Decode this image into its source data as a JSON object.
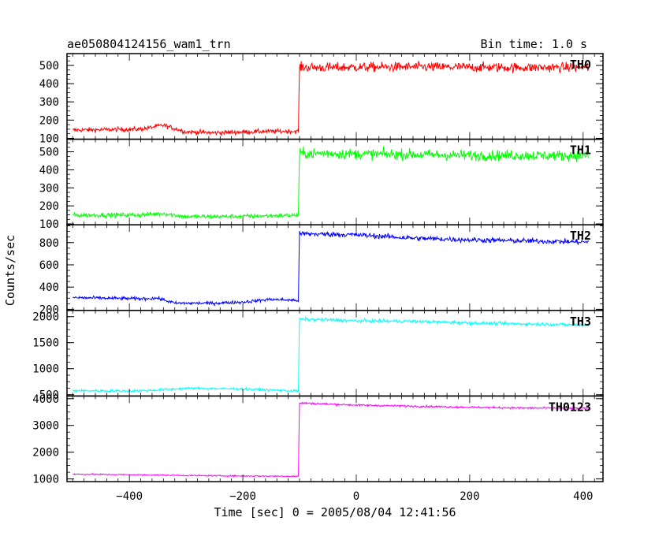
{
  "header": {
    "title": "ae050804124156_wam1_trn",
    "bin_time": "Bin time: 1.0 s"
  },
  "chart_data": {
    "type": "line",
    "xlabel": "Time [sec] 0 = 2005/08/04 12:41:56",
    "ylabel": "Counts/sec",
    "xlim": [
      -510,
      435
    ],
    "x_range": [
      -500,
      410
    ],
    "x_ticks": [
      -400,
      -200,
      0,
      200,
      400
    ],
    "x_tick_labels": [
      "−400",
      "−200",
      "0",
      "200",
      "400"
    ],
    "step_time": -102,
    "grid": false,
    "panels": [
      {
        "name": "TH0",
        "color": "#ff0000",
        "ylim": [
          95,
          565
        ],
        "yticks": [
          100,
          200,
          300,
          400,
          500
        ],
        "ytick_labels": [
          "100",
          "200",
          "300",
          "400",
          "500"
        ],
        "segments": [
          {
            "x": [
              -500,
              -380,
              -340,
              -300,
              -250,
              -200,
              -150,
              -102
            ],
            "y": [
              145,
              150,
              172,
              135,
              130,
              135,
              138,
              138
            ]
          },
          {
            "x": [
              -100,
              -50,
              0,
              100,
              200,
              300,
              410
            ],
            "y": [
              490,
              488,
              490,
              492,
              490,
              488,
              490
            ]
          }
        ],
        "noise": [
          12,
          25
        ]
      },
      {
        "name": "TH1",
        "color": "#00ff00",
        "ylim": [
          95,
          570
        ],
        "yticks": [
          100,
          200,
          300,
          400,
          500
        ],
        "ytick_labels": [
          "100",
          "200",
          "300",
          "400",
          "500"
        ],
        "segments": [
          {
            "x": [
              -500,
              -380,
              -340,
              -300,
              -200,
              -102
            ],
            "y": [
              148,
              150,
              158,
              140,
              142,
              148
            ]
          },
          {
            "x": [
              -100,
              -50,
              0,
              100,
              200,
              300,
              410
            ],
            "y": [
              490,
              492,
              488,
              485,
              480,
              480,
              478
            ]
          }
        ],
        "noise": [
          12,
          28
        ]
      },
      {
        "name": "TH2",
        "color": "#0000ff",
        "ylim": [
          190,
          960
        ],
        "yticks": [
          200,
          400,
          600,
          800
        ],
        "ytick_labels": [
          "200",
          "400",
          "600",
          "800"
        ],
        "segments": [
          {
            "x": [
              -500,
              -380,
              -350,
              -320,
              -250,
              -200,
              -150,
              -102
            ],
            "y": [
              305,
              295,
              300,
              255,
              255,
              265,
              290,
              280
            ]
          },
          {
            "x": [
              -100,
              -50,
              0,
              100,
              200,
              300,
              410
            ],
            "y": [
              880,
              875,
              870,
              840,
              825,
              815,
              805
            ]
          }
        ],
        "noise": [
          14,
          22
        ]
      },
      {
        "name": "TH3",
        "color": "#00ffff",
        "ylim": [
          475,
          2120
        ],
        "yticks": [
          500,
          1000,
          1500,
          2000
        ],
        "ytick_labels": [
          "500",
          "1000",
          "1500",
          "2000"
        ],
        "segments": [
          {
            "x": [
              -500,
              -400,
              -350,
              -300,
              -200,
              -150,
              -102
            ],
            "y": [
              580,
              570,
              590,
              625,
              610,
              590,
              570
            ]
          },
          {
            "x": [
              -100,
              -50,
              0,
              100,
              200,
              300,
              410
            ],
            "y": [
              1950,
              1940,
              1920,
              1910,
              1880,
              1860,
              1840
            ]
          }
        ],
        "noise": [
          22,
          30
        ]
      },
      {
        "name": "TH0123",
        "color": "#ff00ff",
        "ylim": [
          900,
          4100
        ],
        "yticks": [
          1000,
          2000,
          3000,
          4000
        ],
        "ytick_labels": [
          "1000",
          "2000",
          "3000",
          "4000"
        ],
        "segments": [
          {
            "x": [
              -500,
              -400,
              -300,
              -200,
              -102
            ],
            "y": [
              1180,
              1160,
              1130,
              1110,
              1100
            ]
          },
          {
            "x": [
              -100,
              -50,
              0,
              100,
              200,
              300,
              410
            ],
            "y": [
              3840,
              3800,
              3760,
              3720,
              3680,
              3650,
              3640
            ]
          }
        ],
        "noise": [
          22,
          35
        ]
      }
    ]
  }
}
